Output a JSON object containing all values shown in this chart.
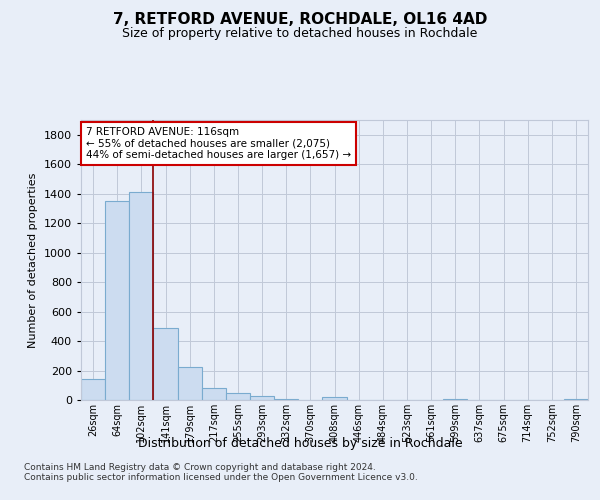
{
  "title1": "7, RETFORD AVENUE, ROCHDALE, OL16 4AD",
  "title2": "Size of property relative to detached houses in Rochdale",
  "xlabel": "Distribution of detached houses by size in Rochdale",
  "ylabel": "Number of detached properties",
  "footnote": "Contains HM Land Registry data © Crown copyright and database right 2024.\nContains public sector information licensed under the Open Government Licence v3.0.",
  "bar_labels": [
    "26sqm",
    "64sqm",
    "102sqm",
    "141sqm",
    "179sqm",
    "217sqm",
    "255sqm",
    "293sqm",
    "332sqm",
    "370sqm",
    "408sqm",
    "446sqm",
    "484sqm",
    "523sqm",
    "561sqm",
    "599sqm",
    "637sqm",
    "675sqm",
    "714sqm",
    "752sqm",
    "790sqm"
  ],
  "bar_values": [
    140,
    1350,
    1410,
    490,
    225,
    80,
    45,
    25,
    10,
    0,
    20,
    0,
    0,
    0,
    0,
    10,
    0,
    0,
    0,
    0,
    10
  ],
  "bar_color": "#ccdcf0",
  "bar_edge_color": "#7aabcf",
  "vline_x_idx": 2,
  "vline_color": "#8b0000",
  "annotation_text": "7 RETFORD AVENUE: 116sqm\n← 55% of detached houses are smaller (2,075)\n44% of semi-detached houses are larger (1,657) →",
  "annotation_box_color": "white",
  "annotation_box_edge_color": "#cc0000",
  "ylim": [
    0,
    1900
  ],
  "yticks": [
    0,
    200,
    400,
    600,
    800,
    1000,
    1200,
    1400,
    1600,
    1800
  ],
  "bg_color": "#e8eef8",
  "plot_bg_color": "#e8eef8",
  "grid_color": "#c0c8d8",
  "title1_fontsize": 11,
  "title2_fontsize": 9,
  "ylabel_fontsize": 8,
  "xlabel_fontsize": 9,
  "ytick_fontsize": 8,
  "xtick_fontsize": 7,
  "footnote_fontsize": 6.5
}
